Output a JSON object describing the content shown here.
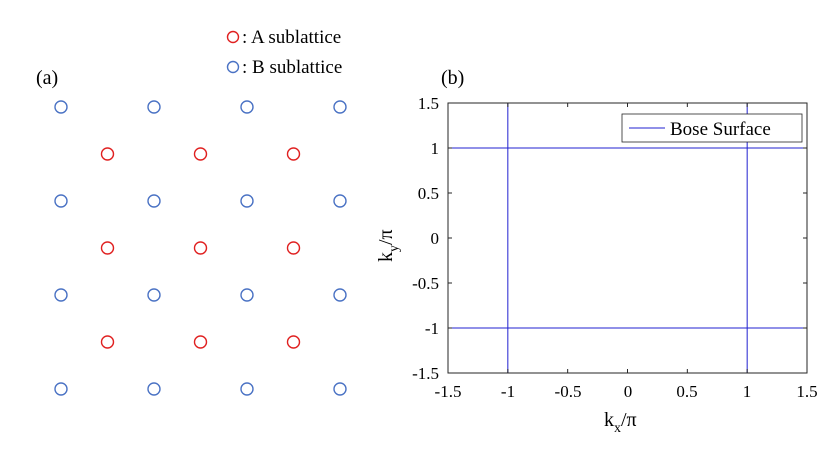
{
  "panel_a": {
    "label": "(a)",
    "legend": [
      {
        "marker_color": "#e02020",
        "text": ": A sublattice"
      },
      {
        "marker_color": "#4a72c4",
        "text": ": B sublattice"
      }
    ],
    "lattice": {
      "rows": [
        {
          "sublattice": "B",
          "count": 4,
          "offset": 0
        },
        {
          "sublattice": "A",
          "count": 3,
          "offset": 0.5
        },
        {
          "sublattice": "B",
          "count": 4,
          "offset": 0
        },
        {
          "sublattice": "A",
          "count": 3,
          "offset": 0.5
        },
        {
          "sublattice": "B",
          "count": 4,
          "offset": 0
        },
        {
          "sublattice": "A",
          "count": 3,
          "offset": 0.5
        },
        {
          "sublattice": "B",
          "count": 4,
          "offset": 0
        }
      ],
      "colors": {
        "A": "#e02020",
        "B": "#4a72c4"
      }
    }
  },
  "panel_b": {
    "label": "(b)",
    "legend_label": "Bose Surface",
    "x_ticks": [
      "-1.5",
      "-1",
      "-0.5",
      "0",
      "0.5",
      "1",
      "1.5"
    ],
    "y_ticks": [
      "1.5",
      "1",
      "0.5",
      "0",
      "-0.5",
      "-1",
      "-1.5"
    ],
    "xlabel": {
      "main": "k",
      "sub": "x",
      "tail": "/π"
    },
    "ylabel": {
      "main": "k",
      "sub": "y",
      "tail": "/π"
    },
    "line_color": "#2020d0"
  },
  "chart_data": {
    "type": "line",
    "title": "",
    "xlabel": "k_x/π",
    "ylabel": "k_y/π",
    "xlim": [
      -1.5,
      1.5
    ],
    "ylim": [
      -1.5,
      1.5
    ],
    "grid": false,
    "legend_position": "top-right",
    "series": [
      {
        "name": "Bose Surface",
        "segments": [
          {
            "x": [
              -1,
              -1
            ],
            "y": [
              -1.5,
              1.5
            ]
          },
          {
            "x": [
              1,
              1
            ],
            "y": [
              -1.5,
              1.5
            ]
          },
          {
            "x": [
              -1.5,
              1.5
            ],
            "y": [
              1,
              1
            ]
          },
          {
            "x": [
              -1.5,
              1.5
            ],
            "y": [
              -1,
              -1
            ]
          }
        ]
      }
    ]
  }
}
